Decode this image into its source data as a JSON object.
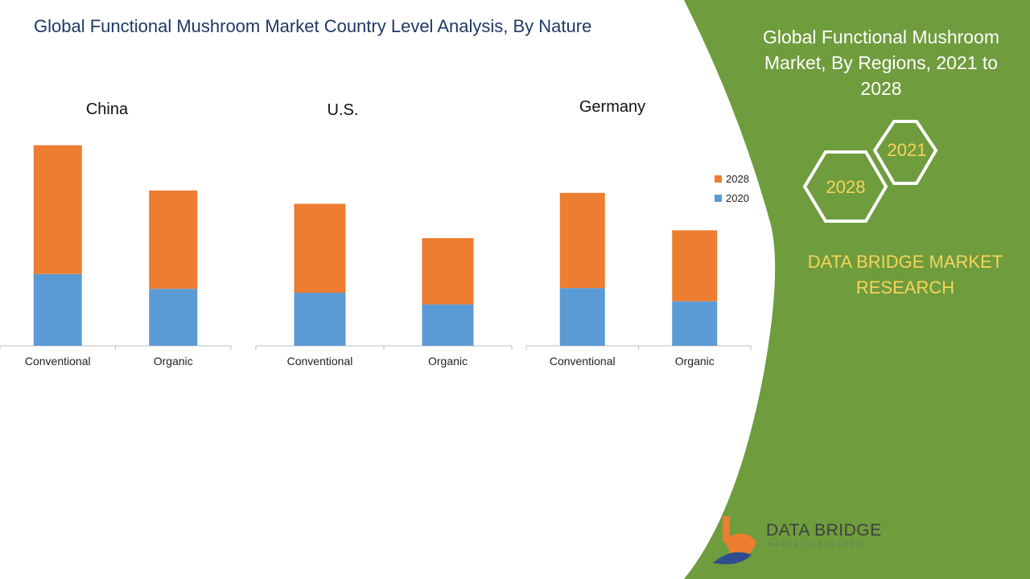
{
  "title": "Global Functional Mushroom Market Country Level Analysis, By Nature",
  "side_panel": {
    "title": "Global Functional Mushroom Market, By Regions, 2021 to 2028",
    "hex_2021": "2021",
    "hex_2028": "2028",
    "brand": "DATA BRIDGE MARKET RESEARCH",
    "logo_text": "DATA BRIDGE",
    "logo_subtext": "MARKET RESEARCH",
    "colors": {
      "panel": "#6f9c3d",
      "hex_text": "#f6d55c",
      "hex_stroke": "#ffffff"
    }
  },
  "chart_data": [
    {
      "type": "bar",
      "stacked": true,
      "title": "China",
      "categories": [
        "Conventional",
        "Organic"
      ],
      "series": [
        {
          "name": "2020",
          "color": "#5b9bd5",
          "values": [
            92,
            73
          ]
        },
        {
          "name": "2028",
          "color": "#ed7d31",
          "values": [
            165,
            126
          ]
        }
      ],
      "ylim": [
        0,
        270
      ],
      "legend": "none",
      "grid": false
    },
    {
      "type": "bar",
      "stacked": true,
      "title": "U.S.",
      "categories": [
        "Conventional",
        "Organic"
      ],
      "series": [
        {
          "name": "2020",
          "color": "#5b9bd5",
          "values": [
            68,
            53
          ]
        },
        {
          "name": "2028",
          "color": "#ed7d31",
          "values": [
            114,
            85
          ]
        }
      ],
      "ylim": [
        0,
        270
      ],
      "legend": "none",
      "grid": false
    },
    {
      "type": "bar",
      "stacked": true,
      "title": "Germany",
      "categories": [
        "Conventional",
        "Organic"
      ],
      "series": [
        {
          "name": "2020",
          "color": "#5b9bd5",
          "values": [
            74,
            57
          ]
        },
        {
          "name": "2028",
          "color": "#ed7d31",
          "values": [
            122,
            91
          ]
        }
      ],
      "ylim": [
        0,
        270
      ],
      "legend": "right",
      "grid": false
    }
  ]
}
